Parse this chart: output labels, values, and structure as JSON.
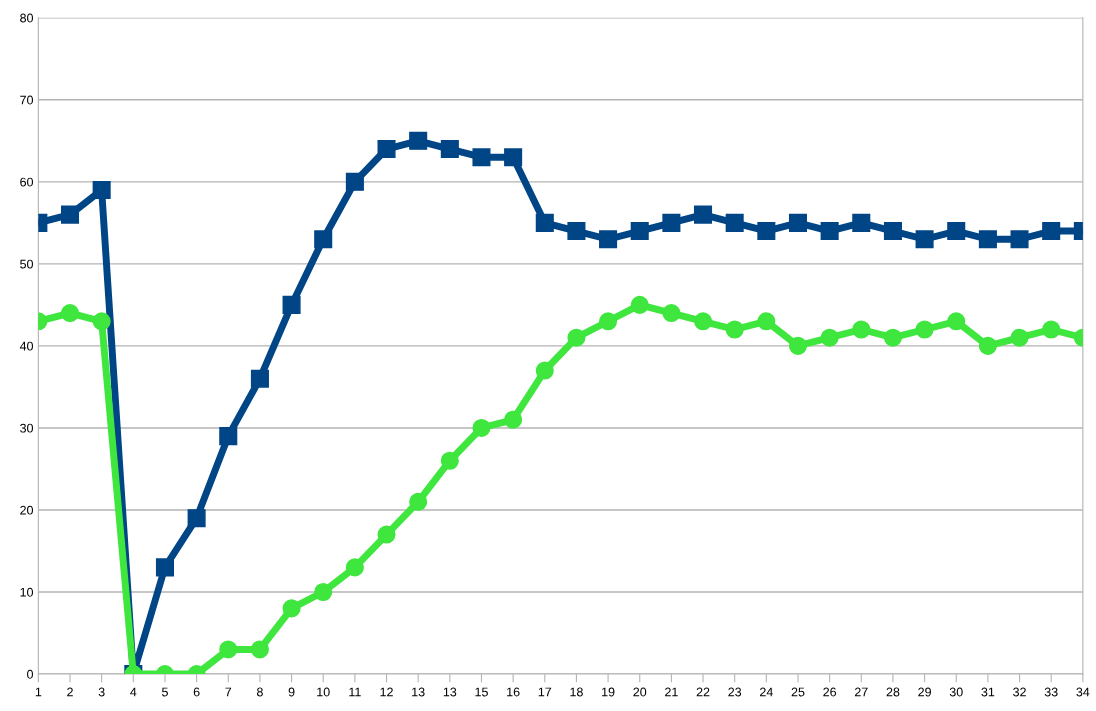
{
  "chart_data": {
    "type": "line",
    "categories": [
      "1",
      "2",
      "3",
      "4",
      "5",
      "6",
      "7",
      "8",
      "9",
      "10",
      "11",
      "12",
      "13",
      "13",
      "15",
      "16",
      "17",
      "18",
      "19",
      "20",
      "21",
      "22",
      "23",
      "24",
      "25",
      "26",
      "27",
      "28",
      "29",
      "30",
      "31",
      "32",
      "33",
      "34"
    ],
    "series": [
      {
        "color": "#004586",
        "marker": "square",
        "values": [
          55,
          56,
          59,
          0,
          13,
          19,
          29,
          36,
          45,
          53,
          60,
          64,
          65,
          64,
          63,
          63,
          55,
          54,
          53,
          54,
          55,
          56,
          55,
          54,
          55,
          54,
          55,
          54,
          53,
          54,
          53,
          53,
          54,
          54
        ]
      },
      {
        "color": "#3ee63e",
        "marker": "circle",
        "values": [
          43,
          44,
          43,
          0,
          0,
          0,
          3,
          3,
          8,
          10,
          13,
          17,
          21,
          26,
          30,
          31,
          37,
          41,
          43,
          45,
          44,
          43,
          42,
          43,
          40,
          41,
          42,
          41,
          42,
          43,
          40,
          41,
          42,
          41
        ]
      }
    ],
    "ylim": [
      0,
      80
    ],
    "yticks": [
      0,
      10,
      20,
      30,
      40,
      50,
      60,
      70,
      80
    ],
    "grid": "y",
    "legend": false
  }
}
